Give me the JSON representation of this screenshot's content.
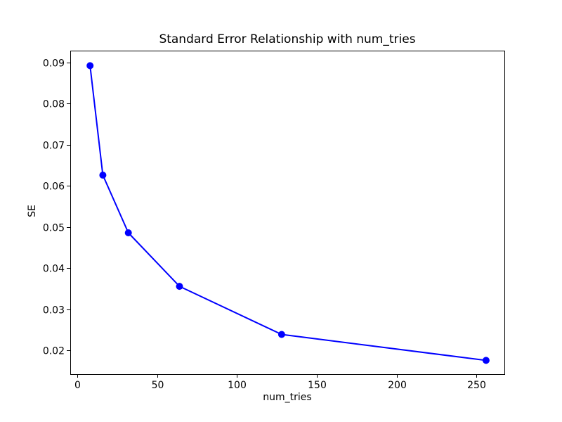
{
  "chart_data": {
    "type": "line",
    "title": "Standard Error Relationship with num_tries",
    "xlabel": "num_tries",
    "ylabel": "SE",
    "x": [
      8,
      16,
      32,
      64,
      128,
      256
    ],
    "y": [
      0.0892,
      0.0626,
      0.0486,
      0.0356,
      0.0239,
      0.0176
    ],
    "series": [
      {
        "name": "SE",
        "x": [
          8,
          16,
          32,
          64,
          128,
          256
        ],
        "values": [
          0.0892,
          0.0626,
          0.0486,
          0.0356,
          0.0239,
          0.0176
        ]
      }
    ],
    "line_color": "#0000ff",
    "marker": "circle",
    "marker_color": "#0000ff",
    "spine_color": "#000000",
    "background_color": "#ffffff",
    "xlim": [
      -4.4,
      267.5
    ],
    "ylim": [
      0.01425,
      0.09285
    ],
    "xticks": [
      0,
      50,
      100,
      150,
      200,
      250
    ],
    "yticks": [
      0.02,
      0.03,
      0.04,
      0.05,
      0.06,
      0.07,
      0.08,
      0.09
    ],
    "ytick_decimals": 2,
    "grid": false,
    "legend_position": "none"
  }
}
